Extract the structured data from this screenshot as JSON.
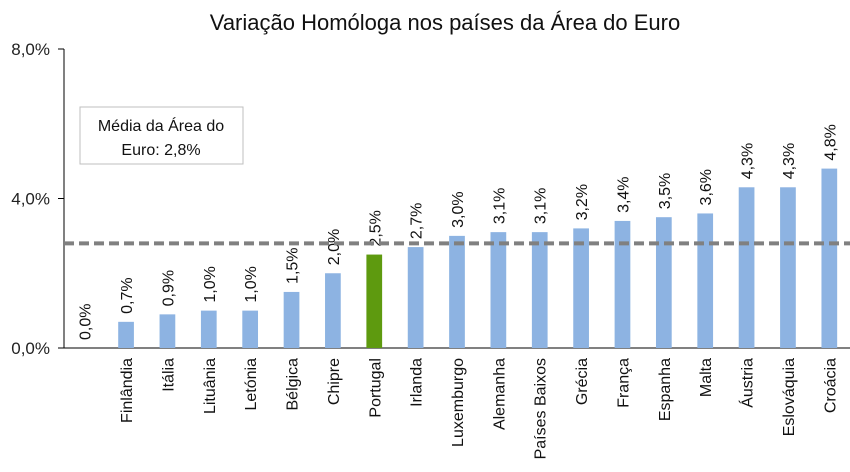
{
  "chart_data": {
    "type": "bar",
    "title": "Variação Homóloga nos países da Área do Euro",
    "categories": [
      "",
      "Finlândia",
      "Itália",
      "Lituânia",
      "Letónia",
      "Bélgica",
      "Chipre",
      "Portugal",
      "Irlanda",
      "Luxemburgo",
      "Alemanha",
      "Países Baixos",
      "Grécia",
      "França",
      "Espanha",
      "Malta",
      "Áustria",
      "Eslováquia",
      "Croácia"
    ],
    "values": [
      0.0,
      0.7,
      0.9,
      1.0,
      1.0,
      1.5,
      2.0,
      2.5,
      2.7,
      3.0,
      3.1,
      3.1,
      3.2,
      3.4,
      3.5,
      3.6,
      4.3,
      4.3,
      4.8
    ],
    "value_labels": [
      "0,0%",
      "0,7%",
      "0,9%",
      "1,0%",
      "1,0%",
      "1,5%",
      "2,0%",
      "2,5%",
      "2,7%",
      "3,0%",
      "3,1%",
      "3,1%",
      "3,2%",
      "3,4%",
      "3,5%",
      "3,6%",
      "4,3%",
      "4,3%",
      "4,8%"
    ],
    "highlight_index": 7,
    "ylim": [
      0,
      8
    ],
    "yticks": [
      0,
      4,
      8
    ],
    "ytick_labels": [
      "0,0%",
      "4,0%",
      "8,0%"
    ],
    "reference_line": {
      "value": 2.8,
      "label": "Média da Área do Euro: 2,8%",
      "label_lines": [
        "Média da Área do",
        "Euro: 2,8%"
      ]
    },
    "colors": {
      "bar": "#8db3e2",
      "highlight": "#5e9a0f",
      "reference_line": "#808080",
      "axis": "#000000"
    },
    "grid": false,
    "legend": "none"
  }
}
